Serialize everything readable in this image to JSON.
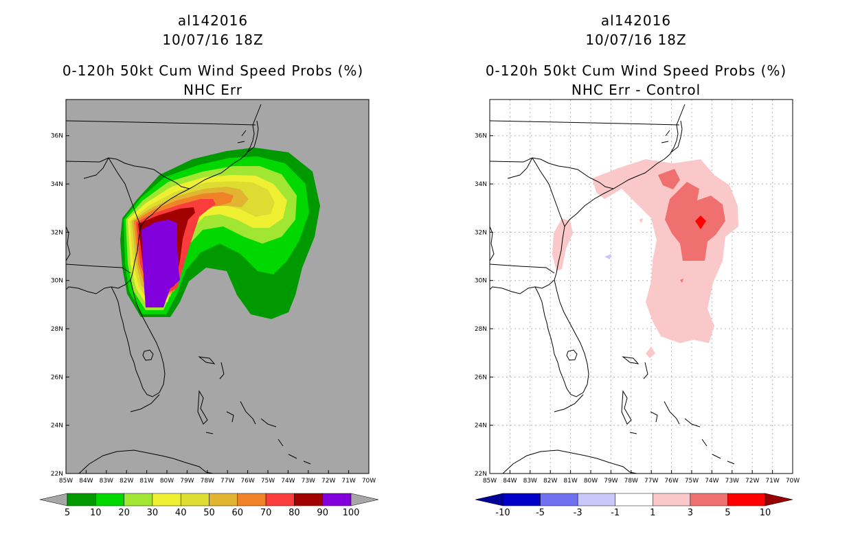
{
  "left": {
    "storm_id": "al142016",
    "datetime": "10/07/16 18Z",
    "product": "0-120h 50kt Cum Wind Speed Probs (%)",
    "subtitle": "NHC Err",
    "background": "#a6a6a6",
    "colorbar": {
      "labels": [
        "5",
        "10",
        "20",
        "30",
        "40",
        "50",
        "60",
        "70",
        "80",
        "90",
        "100"
      ],
      "colors": [
        "#009a00",
        "#00d800",
        "#a0e632",
        "#f0f032",
        "#dcdc32",
        "#e1b432",
        "#f08228",
        "#fa3c3c",
        "#a00000",
        "#8200dc"
      ],
      "under_color": "#a6a6a6",
      "over_color": "#a6a6a6"
    }
  },
  "right": {
    "storm_id": "al142016",
    "datetime": "10/07/16 18Z",
    "product": "0-120h 50kt Cum Wind Speed Probs (%)",
    "subtitle": "NHC Err - Control",
    "background": "#ffffff",
    "colorbar": {
      "labels": [
        "-10",
        "-5",
        "-3",
        "-1",
        "1",
        "3",
        "5",
        "10"
      ],
      "colors": [
        "#0000c8",
        "#7070f0",
        "#c8c8fa",
        "#ffffff",
        "#fac8c8",
        "#f07070",
        "#ff0000"
      ],
      "under_color": "#000096",
      "over_color": "#960000"
    }
  },
  "axes": {
    "lon_labels": [
      "85W",
      "84W",
      "83W",
      "82W",
      "81W",
      "80W",
      "79W",
      "78W",
      "77W",
      "76W",
      "75W",
      "74W",
      "73W",
      "72W",
      "71W",
      "70W"
    ],
    "lat_labels": [
      "22N",
      "24N",
      "26N",
      "28N",
      "30N",
      "32N",
      "34N",
      "36N"
    ],
    "lon_range": [
      -85,
      -70
    ],
    "lat_range": [
      22,
      37.5
    ]
  }
}
